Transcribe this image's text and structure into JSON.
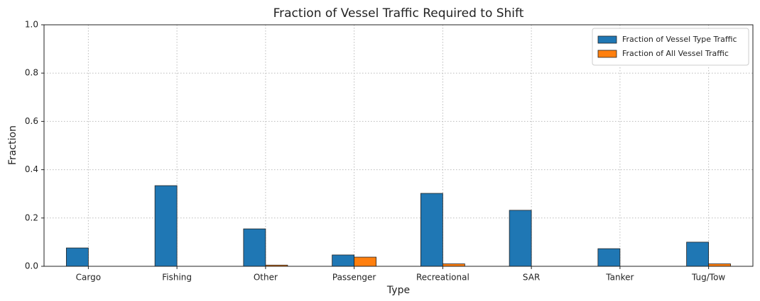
{
  "chart_data": {
    "type": "bar",
    "title": "Fraction of Vessel Traffic Required to Shift",
    "x_label": "Type",
    "y_label": "Fraction",
    "categories": [
      "Cargo",
      "Fishing",
      "Other",
      "Passenger",
      "Recreational",
      "SAR",
      "Tanker",
      "Tug/Tow"
    ],
    "series": [
      {
        "name": "Fraction of Vessel Type Traffic",
        "color": "#1f77b4",
        "values": [
          0.076,
          0.334,
          0.155,
          0.047,
          0.302,
          0.232,
          0.073,
          0.1
        ]
      },
      {
        "name": "Fraction of All Vessel Traffic",
        "color": "#ff7f0e",
        "values": [
          0,
          0,
          0.005,
          0.038,
          0.01,
          0,
          0,
          0.01
        ]
      }
    ],
    "ylim": [
      0,
      1
    ],
    "yticks": [
      {
        "value": 0,
        "label": "0.0"
      },
      0.2,
      0.4,
      0.6,
      0.8,
      {
        "value": 1,
        "label": "1.0"
      }
    ],
    "grid": true,
    "legend": "upper right"
  }
}
